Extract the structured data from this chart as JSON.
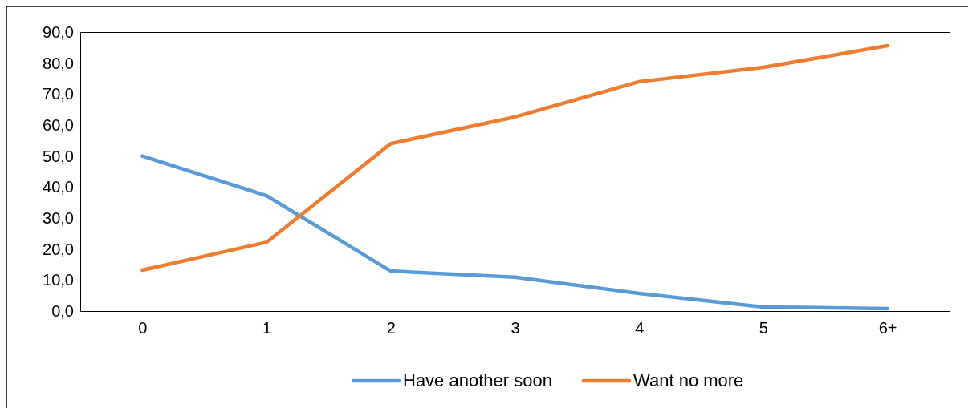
{
  "chart_data": {
    "type": "line",
    "categories": [
      "0",
      "1",
      "2",
      "3",
      "4",
      "5",
      "6+"
    ],
    "series": [
      {
        "name": "Have another soon",
        "color": "#5b9bd5",
        "values": [
          50.0,
          37.2,
          12.9,
          10.9,
          5.7,
          1.3,
          0.8
        ]
      },
      {
        "name": "Want no more",
        "color": "#ed7d31",
        "values": [
          13.2,
          22.2,
          54.0,
          62.6,
          74.0,
          78.6,
          85.6
        ]
      }
    ],
    "ylim": [
      0,
      90
    ],
    "yticks": [
      {
        "value": 0,
        "label": "0,0"
      },
      {
        "value": 10,
        "label": "10,0"
      },
      {
        "value": 20,
        "label": "20,0"
      },
      {
        "value": 30,
        "label": "30,0"
      },
      {
        "value": 40,
        "label": "40,0"
      },
      {
        "value": 50,
        "label": "50,0"
      },
      {
        "value": 60,
        "label": "60,0"
      },
      {
        "value": 70,
        "label": "70,0"
      },
      {
        "value": 80,
        "label": "80,0"
      },
      {
        "value": 90,
        "label": "90,0"
      }
    ],
    "grid": false,
    "legend": "bottom",
    "marker": "none",
    "line_style": "solid"
  }
}
